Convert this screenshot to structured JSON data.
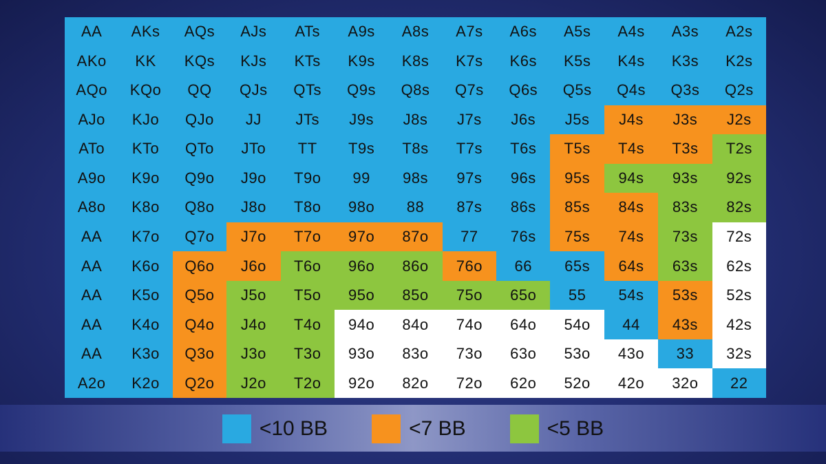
{
  "chart_data": {
    "type": "heatmap",
    "legend": [
      {
        "key": "B",
        "label": "<10 BB",
        "color": "#29a9e1"
      },
      {
        "key": "O",
        "label": "<7 BB",
        "color": "#f7921e"
      },
      {
        "key": "G",
        "label": "<5 BB",
        "color": "#8dc63f"
      }
    ],
    "uncolored": "#ffffff",
    "labels": [
      [
        "AA",
        "AKs",
        "AQs",
        "AJs",
        "ATs",
        "A9s",
        "A8s",
        "A7s",
        "A6s",
        "A5s",
        "A4s",
        "A3s",
        "A2s"
      ],
      [
        "AKo",
        "KK",
        "KQs",
        "KJs",
        "KTs",
        "K9s",
        "K8s",
        "K7s",
        "K6s",
        "K5s",
        "K4s",
        "K3s",
        "K2s"
      ],
      [
        "AQo",
        "KQo",
        "QQ",
        "QJs",
        "QTs",
        "Q9s",
        "Q8s",
        "Q7s",
        "Q6s",
        "Q5s",
        "Q4s",
        "Q3s",
        "Q2s"
      ],
      [
        "AJo",
        "KJo",
        "QJo",
        "JJ",
        "JTs",
        "J9s",
        "J8s",
        "J7s",
        "J6s",
        "J5s",
        "J4s",
        "J3s",
        "J2s"
      ],
      [
        "ATo",
        "KTo",
        "QTo",
        "JTo",
        "TT",
        "T9s",
        "T8s",
        "T7s",
        "T6s",
        "T5s",
        "T4s",
        "T3s",
        "T2s"
      ],
      [
        "A9o",
        "K9o",
        "Q9o",
        "J9o",
        "T9o",
        "99",
        "98s",
        "97s",
        "96s",
        "95s",
        "94s",
        "93s",
        "92s"
      ],
      [
        "A8o",
        "K8o",
        "Q8o",
        "J8o",
        "T8o",
        "98o",
        "88",
        "87s",
        "86s",
        "85s",
        "84s",
        "83s",
        "82s"
      ],
      [
        "AA",
        "K7o",
        "Q7o",
        "J7o",
        "T7o",
        "97o",
        "87o",
        "77",
        "76s",
        "75s",
        "74s",
        "73s",
        "72s"
      ],
      [
        "AA",
        "K6o",
        "Q6o",
        "J6o",
        "T6o",
        "96o",
        "86o",
        "76o",
        "66",
        "65s",
        "64s",
        "63s",
        "62s"
      ],
      [
        "AA",
        "K5o",
        "Q5o",
        "J5o",
        "T5o",
        "95o",
        "85o",
        "75o",
        "65o",
        "55",
        "54s",
        "53s",
        "52s"
      ],
      [
        "AA",
        "K4o",
        "Q4o",
        "J4o",
        "T4o",
        "94o",
        "84o",
        "74o",
        "64o",
        "54o",
        "44",
        "43s",
        "42s"
      ],
      [
        "AA",
        "K3o",
        "Q3o",
        "J3o",
        "T3o",
        "93o",
        "83o",
        "73o",
        "63o",
        "53o",
        "43o",
        "33",
        "32s"
      ],
      [
        "A2o",
        "K2o",
        "Q2o",
        "J2o",
        "T2o",
        "92o",
        "82o",
        "72o",
        "62o",
        "52o",
        "42o",
        "32o",
        "22"
      ]
    ],
    "categories": [
      "BBBBBBBBBBBBB",
      "BBBBBBBBBBBBB",
      "BBBBBBBBBBBBB",
      "BBBBBBBBBBOOO",
      "BBBBBBBBBOOOG",
      "BBBBBBBBBOGGG",
      "BBBBBBBBBOOGG",
      "BBBOOOOBBOOGW",
      "BBOOGGGOBBOGW",
      "BBOGGGGGGBBOW",
      "BBOGGWWWWWBOW",
      "BBOGGWWWWWWBW",
      "BBOGGWWWWWWWB"
    ]
  }
}
